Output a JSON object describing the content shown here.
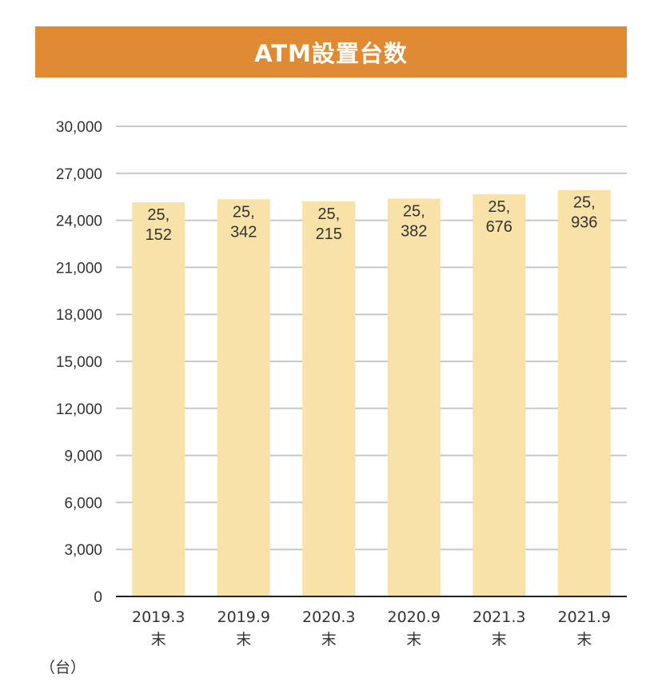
{
  "chart_data": {
    "type": "bar",
    "title": "ATM設置台数",
    "unit_label": "（台）",
    "categories": [
      "2019.3末",
      "2019.9末",
      "2020.3末",
      "2020.9末",
      "2021.3末",
      "2021.9末"
    ],
    "category_lines": [
      [
        "2019.3",
        "末"
      ],
      [
        "2019.9",
        "末"
      ],
      [
        "2020.3",
        "末"
      ],
      [
        "2020.9",
        "末"
      ],
      [
        "2021.3",
        "末"
      ],
      [
        "2021.9",
        "末"
      ]
    ],
    "values": [
      25152,
      25342,
      25215,
      25382,
      25676,
      25936
    ],
    "value_label_lines": [
      [
        "25,",
        "152"
      ],
      [
        "25,",
        "342"
      ],
      [
        "25,",
        "215"
      ],
      [
        "25,",
        "382"
      ],
      [
        "25,",
        "676"
      ],
      [
        "25,",
        "936"
      ]
    ],
    "y_ticks": [
      "0",
      "3,000",
      "6,000",
      "9,000",
      "12,000",
      "15,000",
      "18,000",
      "21,000",
      "24,000",
      "27,000",
      "30,000"
    ],
    "ylim": [
      0,
      30000
    ],
    "grid": true,
    "legend": "none"
  },
  "colors": {
    "title_bg": "#e08a33",
    "title_text": "#ffffff",
    "bar": "#f8e2a8",
    "grid": "#c8c8c8",
    "axis": "#222222",
    "text": "#333333"
  }
}
